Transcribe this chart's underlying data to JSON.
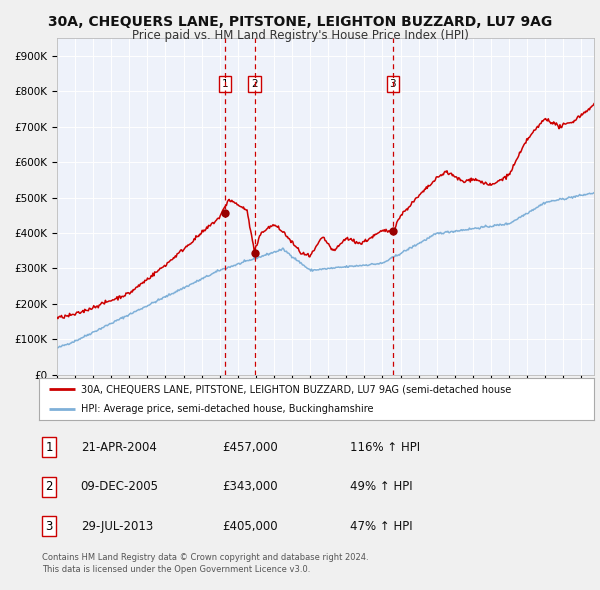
{
  "title1": "30A, CHEQUERS LANE, PITSTONE, LEIGHTON BUZZARD, LU7 9AG",
  "title2": "Price paid vs. HM Land Registry's House Price Index (HPI)",
  "bg_color": "#f0f0f0",
  "plot_bg": "#eef2fa",
  "grid_color": "#ffffff",
  "red_line_color": "#cc0000",
  "blue_line_color": "#7fb0d8",
  "transactions": [
    {
      "label": "1",
      "date_num": 2004.3,
      "price": 457000,
      "x_vline": 2004.3
    },
    {
      "label": "2",
      "date_num": 2005.93,
      "price": 343000,
      "x_vline": 2005.93
    },
    {
      "label": "3",
      "date_num": 2013.57,
      "price": 405000,
      "x_vline": 2013.57
    }
  ],
  "legend_line1": "30A, CHEQUERS LANE, PITSTONE, LEIGHTON BUZZARD, LU7 9AG (semi-detached house",
  "legend_line2": "HPI: Average price, semi-detached house, Buckinghamshire",
  "footer1": "Contains HM Land Registry data © Crown copyright and database right 2024.",
  "footer2": "This data is licensed under the Open Government Licence v3.0.",
  "table": [
    {
      "num": "1",
      "date": "21-APR-2004",
      "price": "£457,000",
      "note": "116% ↑ HPI"
    },
    {
      "num": "2",
      "date": "09-DEC-2005",
      "price": "£343,000",
      "note": "49% ↑ HPI"
    },
    {
      "num": "3",
      "date": "29-JUL-2013",
      "price": "£405,000",
      "note": "47% ↑ HPI"
    }
  ],
  "ylim": [
    0,
    950000
  ],
  "xlim_start": 1995.0,
  "xlim_end": 2024.7,
  "yticks": [
    0,
    100000,
    200000,
    300000,
    400000,
    500000,
    600000,
    700000,
    800000,
    900000
  ],
  "ytick_labels": [
    "£0",
    "£100K",
    "£200K",
    "£300K",
    "£400K",
    "£500K",
    "£600K",
    "£700K",
    "£800K",
    "£900K"
  ]
}
